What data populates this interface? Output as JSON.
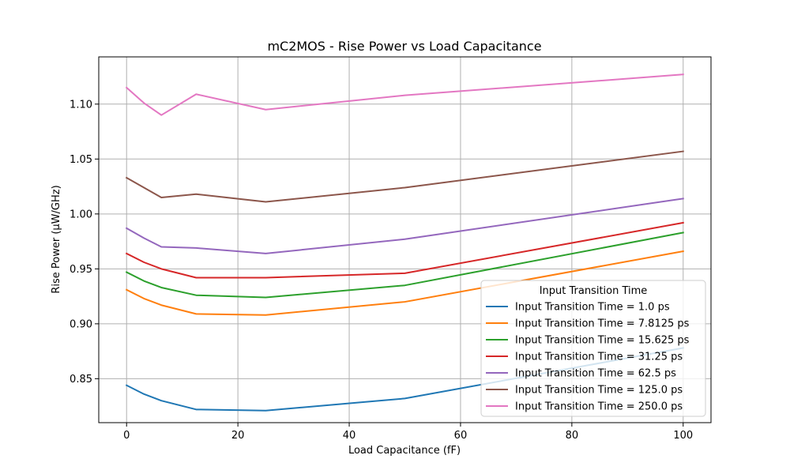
{
  "chart_data": {
    "type": "line",
    "title": "mC2MOS - Rise Power vs Load Capacitance",
    "xlabel": "Load Capacitance (fF)",
    "ylabel": "Rise Power (µW/GHz)",
    "xlim": [
      -5,
      105
    ],
    "ylim": [
      0.81,
      1.143
    ],
    "x_ticks": [
      0,
      20,
      40,
      60,
      80,
      100
    ],
    "y_ticks": [
      0.85,
      0.9,
      0.95,
      1.0,
      1.05,
      1.1
    ],
    "x_tick_labels": [
      "0",
      "20",
      "40",
      "60",
      "80",
      "100"
    ],
    "y_tick_labels": [
      "0.85",
      "0.90",
      "0.95",
      "1.00",
      "1.05",
      "1.10"
    ],
    "grid": true,
    "legend": {
      "title": "Input Transition Time",
      "placement": "lower-right"
    },
    "x": [
      0,
      3.125,
      6.25,
      12.5,
      25,
      50,
      100
    ],
    "series": [
      {
        "name": "Input Transition Time = 1.0 ps",
        "color": "#1f77b4",
        "values": [
          0.844,
          0.836,
          0.83,
          0.822,
          0.821,
          0.832,
          0.878
        ]
      },
      {
        "name": "Input Transition Time = 7.8125 ps",
        "color": "#ff7f0e",
        "values": [
          0.931,
          0.923,
          0.917,
          0.909,
          0.908,
          0.92,
          0.966
        ]
      },
      {
        "name": "Input Transition Time = 15.625 ps",
        "color": "#2ca02c",
        "values": [
          0.947,
          0.939,
          0.933,
          0.926,
          0.924,
          0.935,
          0.983
        ]
      },
      {
        "name": "Input Transition Time = 31.25 ps",
        "color": "#d62728",
        "values": [
          0.964,
          0.956,
          0.95,
          0.942,
          0.942,
          0.946,
          0.992
        ]
      },
      {
        "name": "Input Transition Time = 62.5 ps",
        "color": "#9467bd",
        "values": [
          0.987,
          0.978,
          0.97,
          0.969,
          0.964,
          0.977,
          1.014
        ]
      },
      {
        "name": "Input Transition Time = 125.0 ps",
        "color": "#8c564b",
        "values": [
          1.033,
          1.024,
          1.015,
          1.018,
          1.011,
          1.024,
          1.057
        ]
      },
      {
        "name": "Input Transition Time = 250.0 ps",
        "color": "#e377c2",
        "values": [
          1.115,
          1.101,
          1.09,
          1.109,
          1.095,
          1.108,
          1.127
        ]
      }
    ]
  }
}
